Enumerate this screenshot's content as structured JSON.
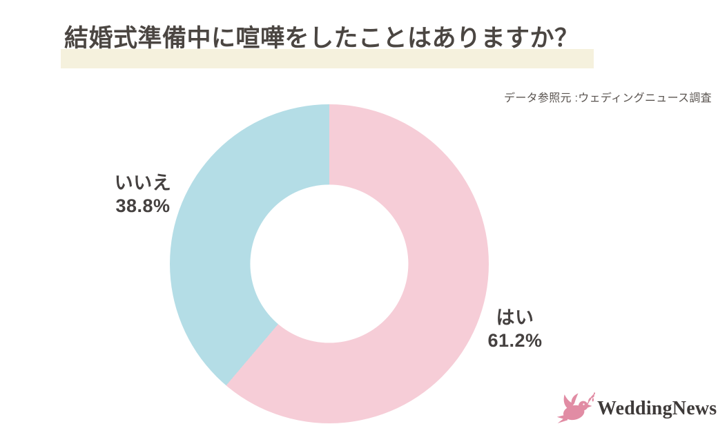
{
  "title": {
    "text": "結婚式準備中に喧嘩をしたことはありますか？",
    "text_color": "#4b4642",
    "highlight_color": "#f5f1dd"
  },
  "source": {
    "text": "データ参照元 :ウェディングニュース調査",
    "text_color": "#5a5450"
  },
  "chart_data": {
    "type": "pie",
    "subtype": "donut",
    "title": "結婚式準備中に喧嘩をしたことはありますか？",
    "categories": [
      "はい",
      "いいえ"
    ],
    "values": [
      61.2,
      38.8
    ],
    "unit": "%",
    "colors": [
      "#f6cdd7",
      "#b4dde6"
    ],
    "start_angle": "top",
    "direction": "clockwise",
    "donut_hole_ratio": 0.496,
    "hole_color": "#ffffff",
    "legend_position": "none",
    "label_color": "#454140",
    "labels": [
      {
        "text": "はい",
        "value_text": "61.2%",
        "side": "lower-right"
      },
      {
        "text": "いいえ",
        "value_text": "38.8%",
        "side": "upper-left"
      }
    ]
  },
  "logo": {
    "text": "WeddingNews",
    "icon": "dove-with-olive-branch",
    "icon_color": "#e18ca4",
    "text_color": "#3e3a39"
  }
}
